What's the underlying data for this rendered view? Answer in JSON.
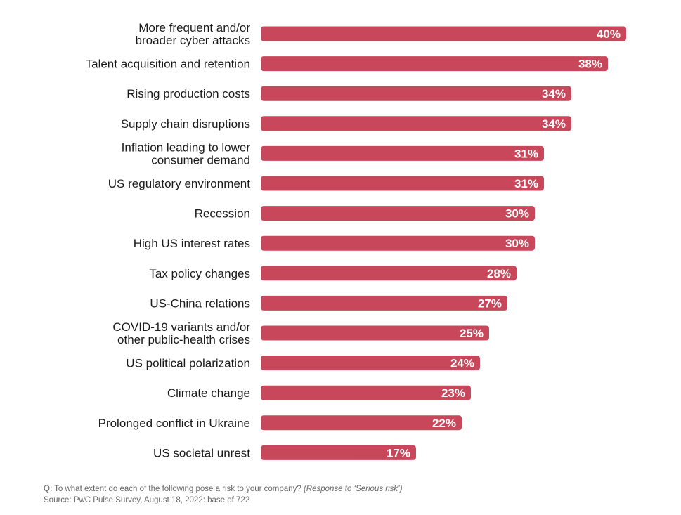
{
  "chart_data": {
    "type": "bar",
    "orientation": "horizontal",
    "categories": [
      "More frequent and/or\nbroader cyber attacks",
      "Talent acquisition and retention",
      "Rising production costs",
      "Supply chain disruptions",
      "Inflation leading to lower\nconsumer demand",
      "US regulatory environment",
      "Recession",
      "High US interest rates",
      "Tax policy changes",
      "US-China relations",
      "COVID-19 variants and/or\nother public-health crises",
      "US political polarization",
      "Climate change",
      "Prolonged conflict in Ukraine",
      "US societal unrest"
    ],
    "values": [
      40,
      38,
      34,
      34,
      31,
      31,
      30,
      30,
      28,
      27,
      25,
      24,
      23,
      22,
      17
    ],
    "value_labels": [
      "40%",
      "38%",
      "34%",
      "34%",
      "31%",
      "31%",
      "30%",
      "30%",
      "28%",
      "27%",
      "25%",
      "24%",
      "23%",
      "22%",
      "17%"
    ],
    "unit": "%",
    "bar_color": "#c8475a",
    "grid": false,
    "legend": "none"
  },
  "footnote": {
    "question": "Q: To what extent do each of the following pose a risk to your company?",
    "question_note": "(Response to ‘Serious risk’)",
    "source": "Source: PwC Pulse Survey, August 18, 2022: base of 722"
  }
}
